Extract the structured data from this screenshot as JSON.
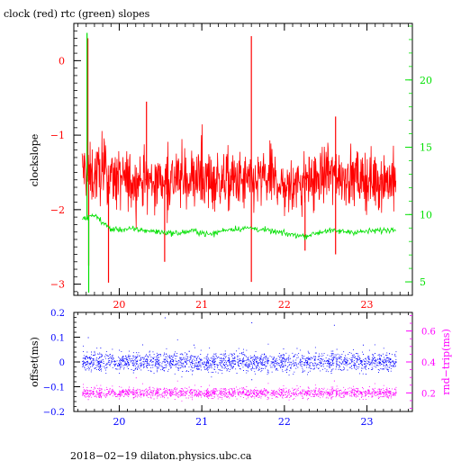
{
  "chart_data": [
    {
      "type": "line",
      "title": "clock (red) rtc (green) slopes",
      "ylabel": "clockslope",
      "xlim": [
        19.45,
        23.55
      ],
      "ylim": [
        -3.15,
        0.5
      ],
      "ylim_right": [
        4.0,
        24.2
      ],
      "x_ticks": [
        "20",
        "21",
        "22",
        "23"
      ],
      "x_tick_values": [
        20,
        21,
        22,
        23
      ],
      "y_ticks": [
        "0",
        "−1",
        "−2",
        "−3"
      ],
      "y_tick_values": [
        0,
        -1,
        -2,
        -3
      ],
      "y_right_ticks": [
        "20",
        "15",
        "10",
        "5"
      ],
      "y_right_tick_values": [
        20,
        15,
        10,
        5
      ],
      "colors": {
        "clock": "#ff0000",
        "rtc": "#00e000",
        "axis_left": "#ff0000",
        "axis_right": "#00e000",
        "frame": "#000000"
      },
      "series": [
        {
          "key": "clock",
          "color": "#ff0000",
          "axis": "left",
          "x_range": [
            19.55,
            23.35
          ],
          "baseline": [
            [
              19.55,
              -1.45
            ],
            [
              19.65,
              -1.55
            ],
            [
              19.8,
              -1.5
            ],
            [
              20.0,
              -1.6
            ],
            [
              20.4,
              -1.62
            ],
            [
              20.8,
              -1.58
            ],
            [
              21.2,
              -1.6
            ],
            [
              21.6,
              -1.65
            ],
            [
              21.85,
              -1.55
            ],
            [
              22.0,
              -1.72
            ],
            [
              22.3,
              -1.62
            ],
            [
              22.6,
              -1.5
            ],
            [
              22.9,
              -1.6
            ],
            [
              23.35,
              -1.6
            ]
          ],
          "noise": 0.2,
          "spikes": [
            {
              "x": 19.62,
              "y": 0.3
            },
            {
              "x": 19.63,
              "y": -2.75
            },
            {
              "x": 19.87,
              "y": -2.98
            },
            {
              "x": 20.33,
              "y": -0.55
            },
            {
              "x": 20.55,
              "y": -2.7
            },
            {
              "x": 21.6,
              "y": 0.33
            },
            {
              "x": 21.6,
              "y": -2.97
            },
            {
              "x": 22.25,
              "y": -2.55
            },
            {
              "x": 22.62,
              "y": -0.75
            },
            {
              "x": 22.62,
              "y": -2.6
            }
          ]
        },
        {
          "key": "rtc",
          "color": "#00e000",
          "axis": "right",
          "x_range": [
            19.55,
            23.35
          ],
          "baseline": [
            [
              19.55,
              9.6
            ],
            [
              19.7,
              10.0
            ],
            [
              19.8,
              9.4
            ],
            [
              19.9,
              8.9
            ],
            [
              20.2,
              8.9
            ],
            [
              20.5,
              8.7
            ],
            [
              20.7,
              8.6
            ],
            [
              20.9,
              8.8
            ],
            [
              21.1,
              8.5
            ],
            [
              21.3,
              8.9
            ],
            [
              21.6,
              9.0
            ],
            [
              21.8,
              8.8
            ],
            [
              22.1,
              8.5
            ],
            [
              22.25,
              8.4
            ],
            [
              22.5,
              8.8
            ],
            [
              22.9,
              8.7
            ],
            [
              23.35,
              8.9
            ]
          ],
          "noise": 0.18,
          "spikes": [
            {
              "x": 19.61,
              "y": 23.5
            },
            {
              "x": 19.63,
              "y": 4.2
            }
          ]
        }
      ]
    },
    {
      "type": "scatter",
      "ylabel": "offset(ms)",
      "ylabel_right": "rnd−trip(ms)",
      "xlim": [
        19.45,
        23.55
      ],
      "ylim": [
        -0.2,
        0.2
      ],
      "ylim_right": [
        0.08,
        0.72
      ],
      "x_ticks": [
        "20",
        "21",
        "22",
        "23"
      ],
      "x_tick_values": [
        20,
        21,
        22,
        23
      ],
      "y_ticks": [
        "0.2",
        "0.1",
        "0",
        "−0.1",
        "−0.2"
      ],
      "y_tick_values": [
        0.2,
        0.1,
        0,
        -0.1,
        -0.2
      ],
      "y_right_ticks": [
        "0.6",
        "0.4",
        "0.2"
      ],
      "y_right_tick_values": [
        0.6,
        0.4,
        0.2
      ],
      "colors": {
        "offset": "#0000ff",
        "rndtrip": "#ff00ff",
        "axis_left": "#0000ff",
        "axis_right": "#ff00ff",
        "frame": "#000000"
      },
      "series": [
        {
          "key": "offset",
          "color": "#0000ff",
          "axis": "left",
          "x_range": [
            19.55,
            23.35
          ],
          "center": 0.0,
          "spread": 0.035,
          "outliers": [
            [
              19.62,
              0.1
            ],
            [
              20.55,
              0.18
            ],
            [
              21.6,
              0.16
            ],
            [
              22.6,
              0.15
            ],
            [
              20.9,
              0.07
            ],
            [
              22.95,
              0.07
            ],
            [
              21.6,
              -0.07
            ]
          ]
        },
        {
          "key": "rndtrip",
          "color": "#ff00ff",
          "axis": "right",
          "x_range": [
            19.55,
            23.35
          ],
          "center": 0.2,
          "spread": 0.03,
          "outliers": [
            [
              19.62,
              0.16
            ],
            [
              20.2,
              0.3
            ],
            [
              22.6,
              0.28
            ]
          ]
        }
      ]
    }
  ],
  "footer": "2018−02−19  dilaton.physics.ubc.ca"
}
